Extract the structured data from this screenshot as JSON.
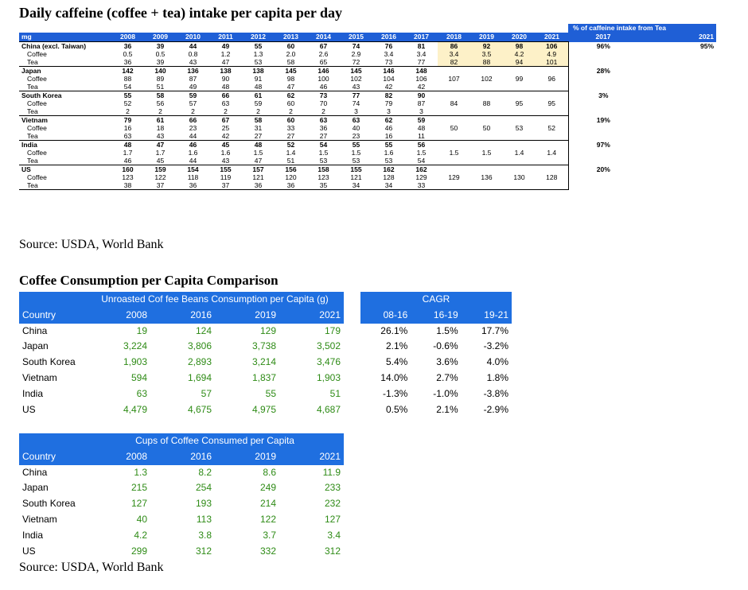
{
  "caffeine": {
    "title": "Daily caffeine (coffee + tea) intake per capita per day",
    "unit": "mg",
    "years": [
      "2008",
      "2009",
      "2010",
      "2011",
      "2012",
      "2013",
      "2014",
      "2015",
      "2016",
      "2017",
      "2018",
      "2019",
      "2020",
      "2021"
    ],
    "pct_header": "% of caffeine intake from Tea",
    "pct_years": [
      "2017",
      "2021"
    ],
    "countries": [
      {
        "name": "China (excl. Taiwan)",
        "total": [
          "36",
          "39",
          "44",
          "49",
          "55",
          "60",
          "67",
          "74",
          "76",
          "81",
          "86",
          "92",
          "98",
          "106"
        ],
        "coffee": [
          "0.5",
          "0.5",
          "0.8",
          "1.2",
          "1.3",
          "2.0",
          "2.6",
          "2.9",
          "3.4",
          "3.4",
          "3.4",
          "3.5",
          "4.2",
          "4.9"
        ],
        "tea": [
          "36",
          "39",
          "43",
          "47",
          "53",
          "58",
          "65",
          "72",
          "73",
          "77",
          "82",
          "88",
          "94",
          "101"
        ],
        "pct2017": "96%",
        "pct2021": "95%"
      },
      {
        "name": "Japan",
        "total": [
          "142",
          "140",
          "136",
          "138",
          "138",
          "145",
          "146",
          "145",
          "146",
          "148",
          "",
          "",
          "",
          ""
        ],
        "coffee": [
          "88",
          "89",
          "87",
          "90",
          "91",
          "98",
          "100",
          "102",
          "104",
          "106",
          "107",
          "102",
          "99",
          "96"
        ],
        "tea": [
          "54",
          "51",
          "49",
          "48",
          "48",
          "47",
          "46",
          "43",
          "42",
          "42",
          "",
          "",
          "",
          ""
        ],
        "pct2017": "28%",
        "pct2021": ""
      },
      {
        "name": "South Korea",
        "total": [
          "55",
          "58",
          "59",
          "66",
          "61",
          "62",
          "73",
          "77",
          "82",
          "90",
          "",
          "",
          "",
          ""
        ],
        "coffee": [
          "52",
          "56",
          "57",
          "63",
          "59",
          "60",
          "70",
          "74",
          "79",
          "87",
          "84",
          "88",
          "95",
          "95"
        ],
        "tea": [
          "2",
          "2",
          "2",
          "2",
          "2",
          "2",
          "2",
          "3",
          "3",
          "3",
          "",
          "",
          "",
          ""
        ],
        "pct2017": "3%",
        "pct2021": ""
      },
      {
        "name": "Vietnam",
        "total": [
          "79",
          "61",
          "66",
          "67",
          "58",
          "60",
          "63",
          "63",
          "62",
          "59",
          "",
          "",
          "",
          ""
        ],
        "coffee": [
          "16",
          "18",
          "23",
          "25",
          "31",
          "33",
          "36",
          "40",
          "46",
          "48",
          "50",
          "50",
          "53",
          "52"
        ],
        "tea": [
          "63",
          "43",
          "44",
          "42",
          "27",
          "27",
          "27",
          "23",
          "16",
          "11",
          "",
          "",
          "",
          ""
        ],
        "pct2017": "19%",
        "pct2021": ""
      },
      {
        "name": "India",
        "total": [
          "48",
          "47",
          "46",
          "45",
          "48",
          "52",
          "54",
          "55",
          "55",
          "56",
          "",
          "",
          "",
          ""
        ],
        "coffee": [
          "1.7",
          "1.7",
          "1.6",
          "1.6",
          "1.5",
          "1.4",
          "1.5",
          "1.5",
          "1.6",
          "1.5",
          "1.5",
          "1.5",
          "1.4",
          "1.4"
        ],
        "tea": [
          "46",
          "45",
          "44",
          "43",
          "47",
          "51",
          "53",
          "53",
          "53",
          "54",
          "",
          "",
          "",
          ""
        ],
        "pct2017": "97%",
        "pct2021": ""
      },
      {
        "name": "US",
        "total": [
          "160",
          "159",
          "154",
          "155",
          "157",
          "156",
          "158",
          "155",
          "162",
          "162",
          "",
          "",
          "",
          ""
        ],
        "coffee": [
          "123",
          "122",
          "118",
          "119",
          "121",
          "120",
          "123",
          "121",
          "128",
          "129",
          "129",
          "136",
          "130",
          "128"
        ],
        "tea": [
          "38",
          "37",
          "36",
          "37",
          "36",
          "36",
          "35",
          "34",
          "34",
          "33",
          "",
          "",
          "",
          ""
        ],
        "pct2017": "20%",
        "pct2021": ""
      }
    ],
    "coffee_label": "Coffee",
    "tea_label": "Tea",
    "source": "Source: USDA, World Bank"
  },
  "comparison": {
    "title": "Coffee Consumption per Capita Comparison",
    "beans": {
      "header": "Unroasted Cof fee Beans Consumption per Capita (g)",
      "country_label": "Country",
      "years": [
        "2008",
        "2016",
        "2019",
        "2021"
      ],
      "rows": [
        {
          "country": "China",
          "values": [
            "19",
            "124",
            "129",
            "179"
          ]
        },
        {
          "country": "Japan",
          "values": [
            "3,224",
            "3,806",
            "3,738",
            "3,502"
          ]
        },
        {
          "country": "South Korea",
          "values": [
            "1,903",
            "2,893",
            "3,214",
            "3,476"
          ]
        },
        {
          "country": "Vietnam",
          "values": [
            "594",
            "1,694",
            "1,837",
            "1,903"
          ]
        },
        {
          "country": "India",
          "values": [
            "63",
            "57",
            "55",
            "51"
          ]
        },
        {
          "country": "US",
          "values": [
            "4,479",
            "4,675",
            "4,975",
            "4,687"
          ]
        }
      ]
    },
    "cagr": {
      "header": "CAGR",
      "periods": [
        "08-16",
        "16-19",
        "19-21"
      ],
      "rows": [
        [
          "26.1%",
          "1.5%",
          "17.7%"
        ],
        [
          "2.1%",
          "-0.6%",
          "-3.2%"
        ],
        [
          "5.4%",
          "3.6%",
          "4.0%"
        ],
        [
          "14.0%",
          "2.7%",
          "1.8%"
        ],
        [
          "-1.3%",
          "-1.0%",
          "-3.8%"
        ],
        [
          "0.5%",
          "2.1%",
          "-2.9%"
        ]
      ]
    },
    "cups": {
      "header": "Cups of Coffee Consumed per Capita",
      "country_label": "Country",
      "years": [
        "2008",
        "2016",
        "2019",
        "2021"
      ],
      "rows": [
        {
          "country": "China",
          "values": [
            "1.3",
            "8.2",
            "8.6",
            "11.9"
          ]
        },
        {
          "country": "Japan",
          "values": [
            "215",
            "254",
            "249",
            "233"
          ]
        },
        {
          "country": "South Korea",
          "values": [
            "127",
            "193",
            "214",
            "232"
          ]
        },
        {
          "country": "Vietnam",
          "values": [
            "40",
            "113",
            "122",
            "127"
          ]
        },
        {
          "country": "India",
          "values": [
            "4.2",
            "3.8",
            "3.7",
            "3.4"
          ]
        },
        {
          "country": "US",
          "values": [
            "299",
            "312",
            "332",
            "312"
          ]
        }
      ]
    },
    "source": "Source: USDA, World Bank"
  }
}
